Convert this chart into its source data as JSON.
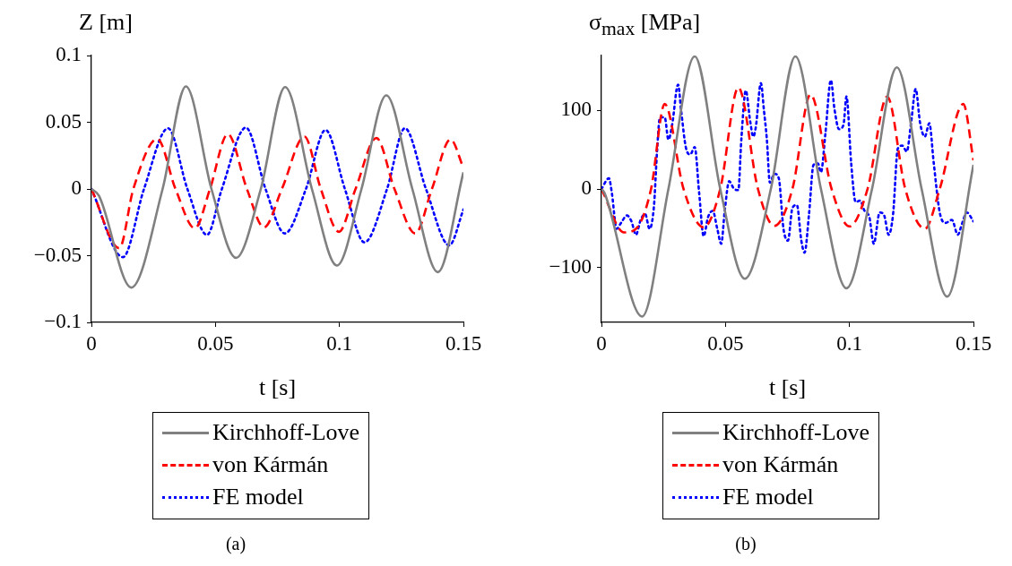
{
  "chart_data": [
    {
      "type": "line",
      "ylabel": "Z [m]",
      "xlabel": "t [s]",
      "xlim": [
        0,
        0.15
      ],
      "xticks": [
        0,
        0.05,
        0.1,
        0.15
      ],
      "ylim": [
        -0.1,
        0.1
      ],
      "yticks": [
        {
          "value": -0.1,
          "label": "−0.1"
        },
        {
          "value": -0.05,
          "label": "−0.05"
        },
        0,
        0.05,
        0.1
      ],
      "legend": "bottom",
      "marker": "none",
      "annotations": [
        "(a)"
      ],
      "series": [
        {
          "name": "Kirchhoff-Love",
          "color": "#808080",
          "line_style": "solid",
          "x": [
            0,
            0.003,
            0.0161,
            0.0287,
            0.0381,
            0.0484,
            0.0583,
            0.0683,
            0.0781,
            0.0889,
            0.099,
            0.1089,
            0.1189,
            0.1294,
            0.1397,
            0.15
          ],
          "values": [
            0,
            -0.005,
            -0.0739,
            0,
            0.0768,
            0,
            -0.0516,
            0,
            0.0763,
            0,
            -0.0574,
            0,
            0.0701,
            0,
            -0.0623,
            0.0125
          ]
        },
        {
          "name": "von Kármán",
          "color": "#ff0000",
          "line_style": "dashed",
          "x": [
            0,
            0.01125,
            0.0169,
            0.0266,
            0.0339,
            0.0417,
            0.0478,
            0.055,
            0.0627,
            0.0696,
            0.0768,
            0.0859,
            0.0925,
            0.0998,
            0.1065,
            0.1149,
            0.1222,
            0.1306,
            0.1373,
            0.1448,
            0.15
          ],
          "values": [
            0,
            -0.0444,
            0,
            0.0375,
            0,
            -0.0295,
            0,
            0.0411,
            0,
            -0.0288,
            0,
            0.0393,
            0,
            -0.0321,
            0,
            0.0382,
            0,
            -0.0333,
            0,
            0.0371,
            0.0158
          ]
        },
        {
          "name": "FE model",
          "color": "#0000ff",
          "line_style": "dotted",
          "x": [
            0,
            0.0127,
            0.0212,
            0.0309,
            0.0387,
            0.0466,
            0.0526,
            0.0623,
            0.0702,
            0.078,
            0.0865,
            0.0944,
            0.1022,
            0.1101,
            0.1192,
            0.1264,
            0.1349,
            0.1443,
            0.15
          ],
          "values": [
            0,
            -0.0511,
            0,
            0.0455,
            0,
            -0.0344,
            0,
            0.046,
            0,
            -0.0333,
            0,
            0.0442,
            0,
            -0.04,
            0,
            0.0455,
            0,
            -0.0422,
            -0.0154
          ]
        }
      ]
    },
    {
      "type": "line",
      "ylabel": "σ$_{max}$ [MPa]",
      "xlabel": "t [s]",
      "xlim": [
        0,
        0.15
      ],
      "xticks": [
        0,
        0.05,
        0.1,
        0.15
      ],
      "ylim": [
        -170,
        170
      ],
      "yticks": [
        {
          "value": -100,
          "label": "−100"
        },
        0,
        100
      ],
      "legend": "bottom",
      "marker": "none",
      "annotations": [
        "(b)"
      ],
      "series": [
        {
          "name": "Kirchhoff-Love",
          "color": "#808080",
          "line_style": "solid",
          "x": [
            0,
            0.0012,
            0.0164,
            0.027,
            0.0376,
            0.0479,
            0.0578,
            0.0683,
            0.0782,
            0.0885,
            0.0988,
            0.1091,
            0.1191,
            0.1291,
            0.1394,
            0.15
          ],
          "values": [
            0,
            -5,
            -162.5,
            0,
            168.9,
            0,
            -114.4,
            0,
            168.9,
            0,
            -126.5,
            0,
            154.9,
            0,
            -137.1,
            30.7
          ]
        },
        {
          "name": "von Kármán",
          "color": "#ff0000",
          "line_style": "dashed",
          "x": [
            0,
            0.0091,
            0.0139,
            0.02,
            0.0255,
            0.0331,
            0.0412,
            0.0479,
            0.0552,
            0.0631,
            0.0697,
            0.077,
            0.0843,
            0.0928,
            0.1,
            0.1073,
            0.1152,
            0.1225,
            0.1304,
            0.1364,
            0.1459,
            0.15
          ],
          "values": [
            0,
            -55.3,
            -50.8,
            0,
            108.3,
            0,
            -48.9,
            0,
            129.2,
            0,
            -47,
            0,
            120.5,
            0,
            -47.7,
            0,
            117.8,
            0,
            -50.8,
            0,
            108.3,
            36.4
          ]
        },
        {
          "name": "FE model",
          "color": "#0000ff",
          "line_style": "dotted",
          "x": [
            0,
            0.003,
            0.0042,
            0.0061,
            0.0079,
            0.0103,
            0.0121,
            0.0139,
            0.0158,
            0.0176,
            0.0194,
            0.0212,
            0.0224,
            0.0236,
            0.0255,
            0.027,
            0.0285,
            0.0309,
            0.0321,
            0.034,
            0.0358,
            0.0376,
            0.0394,
            0.0412,
            0.043,
            0.0449,
            0.0467,
            0.0483,
            0.0497,
            0.0515,
            0.0534,
            0.0552,
            0.0564,
            0.0582,
            0.06,
            0.0612,
            0.0622,
            0.0643,
            0.0655,
            0.0667,
            0.0679,
            0.0697,
            0.0715,
            0.0734,
            0.0752,
            0.077,
            0.0788,
            0.0806,
            0.0819,
            0.0837,
            0.0855,
            0.0873,
            0.0885,
            0.0903,
            0.0925,
            0.094,
            0.0958,
            0.0976,
            0.0988,
            0.1007,
            0.1025,
            0.1043,
            0.1061,
            0.108,
            0.1098,
            0.1122,
            0.114,
            0.1158,
            0.1176,
            0.1195,
            0.1213,
            0.1231,
            0.1249,
            0.1267,
            0.1285,
            0.1304,
            0.1322,
            0.134,
            0.1364,
            0.1388,
            0.1413,
            0.1437,
            0.1455,
            0.1473,
            0.15
          ],
          "values": [
            0,
            13.6,
            -5.3,
            -50.8,
            -43.2,
            -33.7,
            -41.3,
            -58.3,
            -39.4,
            -31.8,
            -50.8,
            -20.5,
            47.7,
            91.3,
            91.3,
            62.9,
            81.8,
            133,
            100.8,
            53.4,
            43.9,
            53.4,
            -5.3,
            -60.2,
            -35.6,
            -28,
            -50.8,
            -69.7,
            -28,
            9.8,
            0.4,
            -1.5,
            62.9,
            125.4,
            85.6,
            66.7,
            78,
            134.8,
            100.8,
            62.9,
            8,
            19.3,
            13.6,
            -50.8,
            -65.9,
            -24.2,
            -20.5,
            -65.9,
            -81.1,
            -31.8,
            30.7,
            32.6,
            21.2,
            70.5,
            138.6,
            100.8,
            76.1,
            81.8,
            117.8,
            32.6,
            -16.7,
            -14.8,
            -28,
            -35.6,
            -69.7,
            -29.9,
            -33.7,
            -58.3,
            -31.8,
            51.5,
            55.3,
            47.7,
            85.6,
            127.3,
            83.7,
            66.7,
            83.7,
            32.6,
            -29.9,
            -43.2,
            -39.4,
            -58.3,
            -43.2,
            -29.9,
            -41.3
          ]
        }
      ]
    }
  ]
}
